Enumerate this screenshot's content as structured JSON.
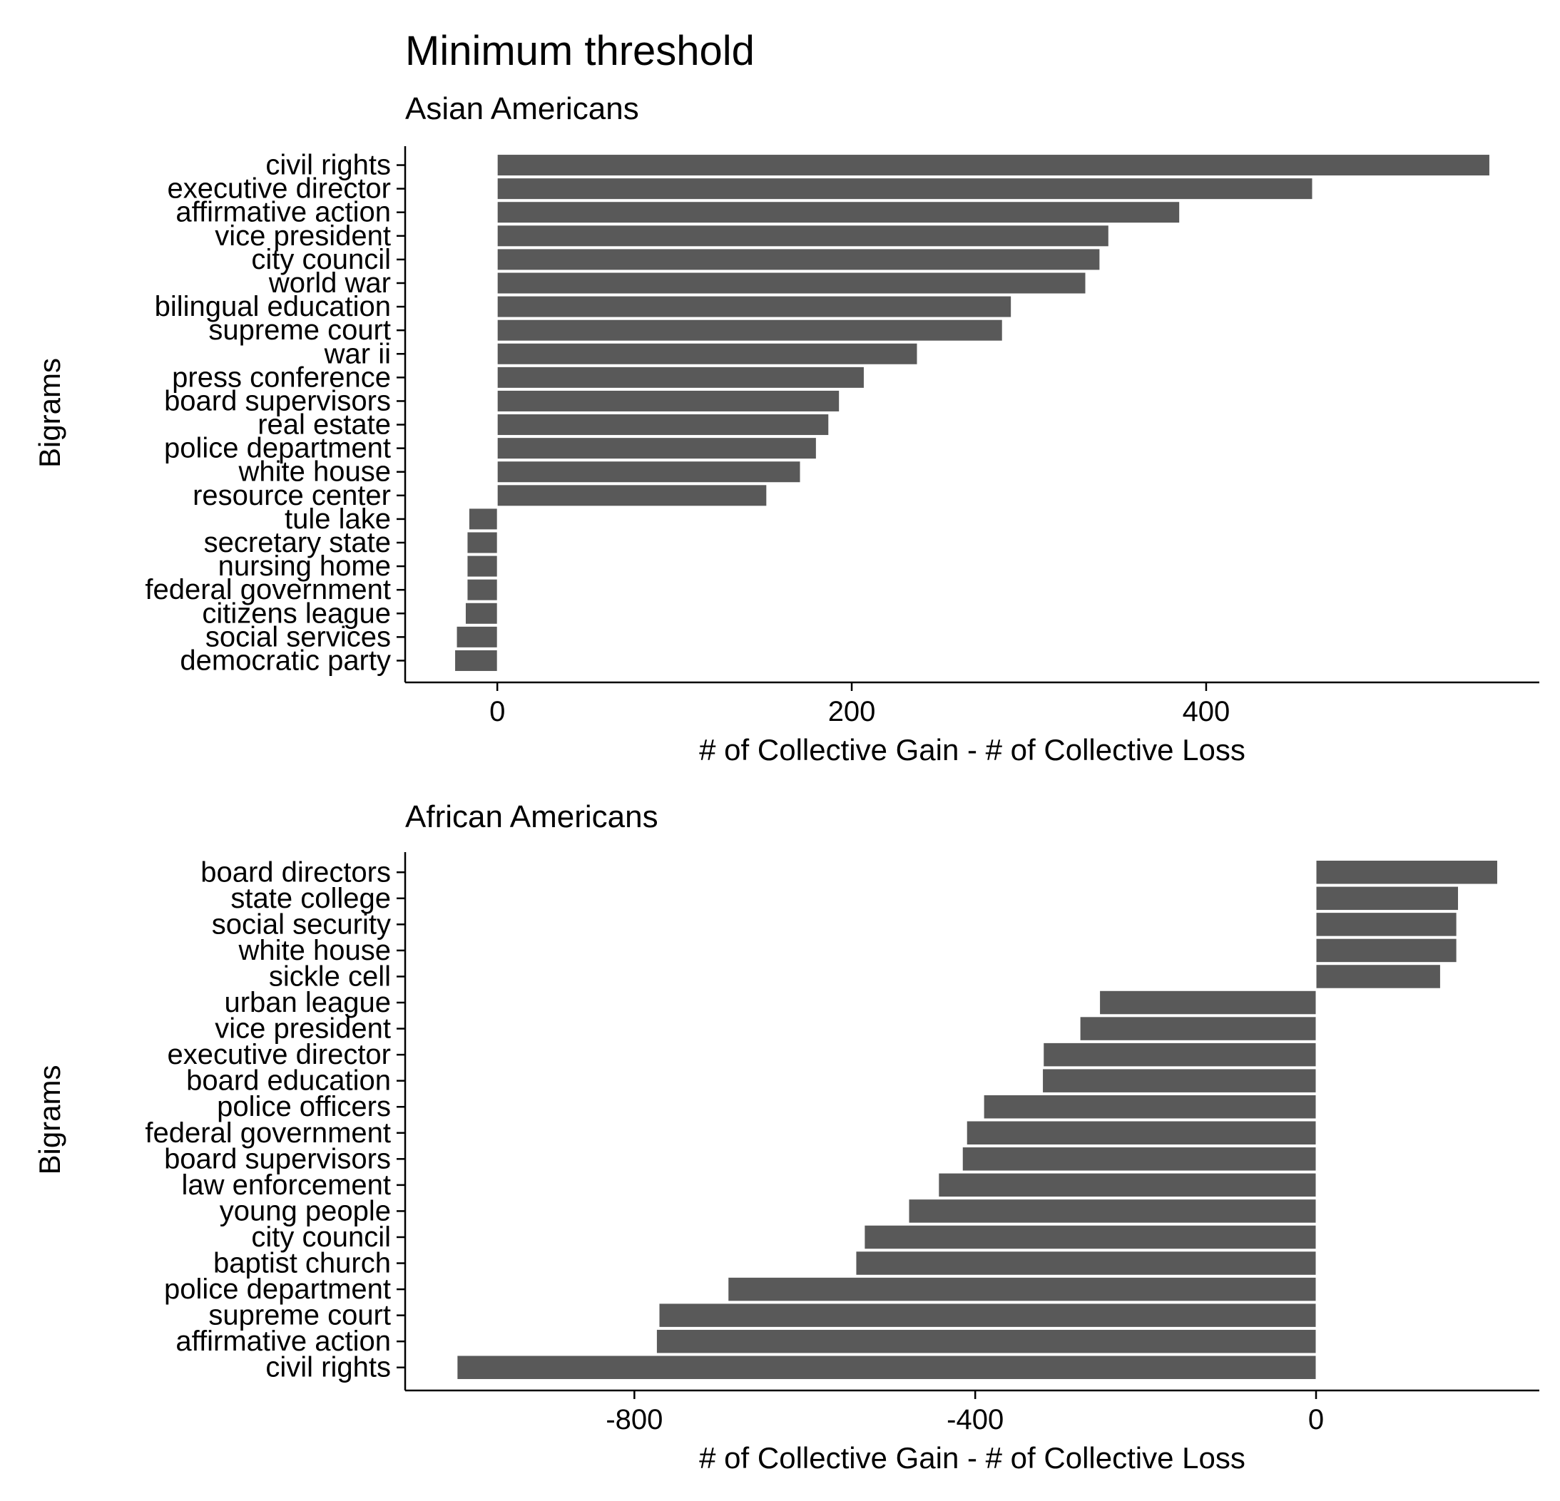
{
  "figure": {
    "title": "Minimum threshold"
  },
  "colors": {
    "bar": "#595959",
    "bar_edge": "#ffffff",
    "axis": "#000000",
    "background": "#ffffff"
  },
  "chart_data": [
    {
      "type": "bar",
      "orientation": "horizontal",
      "title": "Asian Americans",
      "xlabel": "# of Collective Gain - # of Collective Loss",
      "ylabel": "Bigrams",
      "xlim": [
        -52,
        588
      ],
      "xticks": [
        0,
        200,
        400
      ],
      "xtick_labels": [
        "0",
        "200",
        "400"
      ],
      "grid": false,
      "categories": [
        "civil rights",
        "executive director",
        "affirmative action",
        "vice president",
        "city council",
        "world war",
        "bilingual education",
        "supreme court",
        "war ii",
        "press conference",
        "board supervisors",
        "real estate",
        "police department",
        "white house",
        "resource center",
        "tule lake",
        "secretary state",
        "nursing home",
        "federal government",
        "citizens league",
        "social services",
        "democratic party"
      ],
      "values": [
        560,
        460,
        385,
        345,
        340,
        332,
        290,
        285,
        237,
        207,
        193,
        187,
        180,
        171,
        152,
        -16,
        -17,
        -17,
        -17,
        -18,
        -23,
        -24
      ]
    },
    {
      "type": "bar",
      "orientation": "horizontal",
      "title": "African Americans",
      "xlabel": "# of Collective Gain - # of Collective Loss",
      "ylabel": "Bigrams",
      "xlim": [
        -1069,
        262
      ],
      "xticks": [
        -800,
        -400,
        0
      ],
      "xtick_labels": [
        "-800",
        "-400",
        "0"
      ],
      "grid": false,
      "categories": [
        "board directors",
        "state college",
        "social security",
        "white house",
        "sickle cell",
        "urban league",
        "vice president",
        "executive director",
        "board education",
        "police officers",
        "federal government",
        "board supervisors",
        "law enforcement",
        "young people",
        "city council",
        "baptist church",
        "police department",
        "supreme court",
        "affirmative action",
        "civil rights"
      ],
      "values": [
        213,
        167,
        165,
        165,
        146,
        -254,
        -277,
        -320,
        -321,
        -390,
        -410,
        -415,
        -443,
        -478,
        -530,
        -540,
        -690,
        -771,
        -774,
        -1008
      ]
    }
  ]
}
